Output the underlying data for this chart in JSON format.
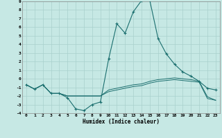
{
  "xlabel": "Humidex (Indice chaleur)",
  "ylabel": "",
  "xlim": [
    -0.5,
    23.5
  ],
  "ylim": [
    -4,
    9
  ],
  "yticks": [
    -4,
    -3,
    -2,
    -1,
    0,
    1,
    2,
    3,
    4,
    5,
    6,
    7,
    8,
    9
  ],
  "xticks": [
    0,
    1,
    2,
    3,
    4,
    5,
    6,
    7,
    8,
    9,
    10,
    11,
    12,
    13,
    14,
    15,
    16,
    17,
    18,
    19,
    20,
    21,
    22,
    23
  ],
  "background_color": "#c6e8e4",
  "grid_color": "#a8d0cc",
  "line_color": "#1a6e6e",
  "line1_x": [
    0,
    1,
    2,
    3,
    4,
    5,
    6,
    7,
    8,
    9,
    10,
    11,
    12,
    13,
    14,
    15,
    16,
    17,
    18,
    19,
    20,
    21,
    22,
    23
  ],
  "line1_y": [
    -0.7,
    -1.2,
    -0.7,
    -1.7,
    -1.7,
    -2.2,
    -3.5,
    -3.7,
    -3.0,
    -2.7,
    2.3,
    6.4,
    5.3,
    7.8,
    9.1,
    9.1,
    4.7,
    2.9,
    1.7,
    0.8,
    0.3,
    -0.3,
    -1.1,
    -1.3
  ],
  "line2_x": [
    0,
    1,
    2,
    3,
    4,
    5,
    6,
    7,
    8,
    9,
    10,
    11,
    12,
    13,
    14,
    15,
    16,
    17,
    18,
    19,
    20,
    21,
    22,
    23
  ],
  "line2_y": [
    -0.7,
    -1.2,
    -0.7,
    -1.7,
    -1.7,
    -2.0,
    -2.0,
    -2.0,
    -2.0,
    -2.0,
    -1.5,
    -1.3,
    -1.1,
    -0.9,
    -0.8,
    -0.5,
    -0.3,
    -0.2,
    -0.1,
    -0.2,
    -0.3,
    -0.4,
    -2.3,
    -2.5
  ],
  "line3_x": [
    0,
    1,
    2,
    3,
    4,
    5,
    6,
    7,
    8,
    9,
    10,
    11,
    12,
    13,
    14,
    15,
    16,
    17,
    18,
    19,
    20,
    21,
    22,
    23
  ],
  "line3_y": [
    -0.7,
    -1.2,
    -0.7,
    -1.7,
    -1.7,
    -2.0,
    -2.0,
    -2.0,
    -2.0,
    -2.0,
    -1.3,
    -1.1,
    -0.9,
    -0.7,
    -0.6,
    -0.3,
    -0.1,
    0.0,
    0.1,
    0.0,
    -0.1,
    -0.3,
    -2.1,
    -2.5
  ]
}
